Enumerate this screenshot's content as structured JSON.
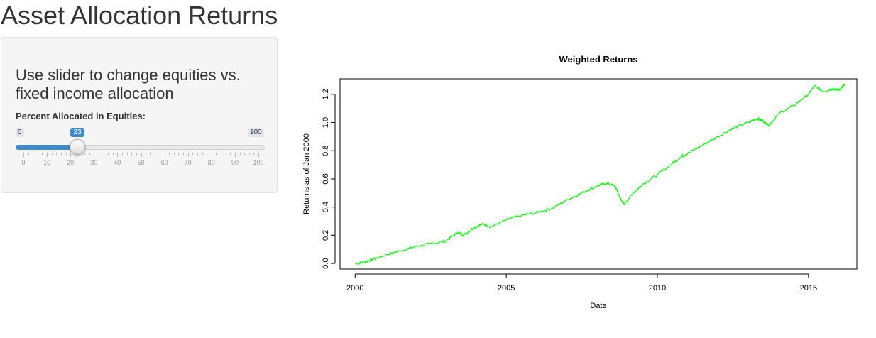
{
  "page": {
    "title": "Asset Allocation Returns"
  },
  "sidebar": {
    "heading": "Use slider to change equities vs. fixed income allocation",
    "slider": {
      "label": "Percent Allocated in Equities:",
      "min": 0,
      "max": 100,
      "value": 23,
      "min_label": "0",
      "max_label": "100",
      "value_label": "23",
      "ticks": [
        "0",
        "10",
        "20",
        "30",
        "40",
        "50",
        "60",
        "70",
        "80",
        "90",
        "100"
      ],
      "fill_color": "#428bca"
    }
  },
  "chart_data": {
    "type": "line",
    "title": "Weighted Returns",
    "xlabel": "Date",
    "ylabel": "Returns as of Jan 2000",
    "xlim": [
      1999.5,
      2016.6
    ],
    "ylim": [
      -0.04,
      1.31
    ],
    "xticks": [
      "2000",
      "2005",
      "2010",
      "2015"
    ],
    "yticks": [
      "0.0",
      "0.2",
      "0.4",
      "0.6",
      "0.8",
      "1.0",
      "1.2"
    ],
    "grid": false,
    "legend": "none",
    "series": [
      {
        "color": "#00ff00",
        "x": [
          2000.0,
          2000.3,
          2000.6,
          2001.0,
          2001.5,
          2002.0,
          2002.5,
          2003.0,
          2003.4,
          2003.6,
          2003.9,
          2004.2,
          2004.5,
          2005.0,
          2005.5,
          2006.0,
          2006.5,
          2007.0,
          2007.5,
          2008.0,
          2008.3,
          2008.6,
          2008.8,
          2008.9,
          2009.2,
          2009.5,
          2010.0,
          2010.5,
          2010.8,
          2011.0,
          2011.5,
          2012.0,
          2012.5,
          2013.0,
          2013.3,
          2013.5,
          2013.7,
          2014.0,
          2014.5,
          2015.0,
          2015.2,
          2015.5,
          2015.8,
          2016.0,
          2016.2
        ],
        "y": [
          0.0,
          0.01,
          0.03,
          0.06,
          0.09,
          0.12,
          0.14,
          0.16,
          0.22,
          0.2,
          0.25,
          0.28,
          0.26,
          0.31,
          0.34,
          0.36,
          0.39,
          0.45,
          0.5,
          0.55,
          0.57,
          0.55,
          0.45,
          0.42,
          0.5,
          0.56,
          0.63,
          0.71,
          0.76,
          0.78,
          0.84,
          0.9,
          0.96,
          1.0,
          1.03,
          1.01,
          0.98,
          1.06,
          1.12,
          1.2,
          1.26,
          1.22,
          1.24,
          1.23,
          1.27
        ]
      }
    ]
  }
}
